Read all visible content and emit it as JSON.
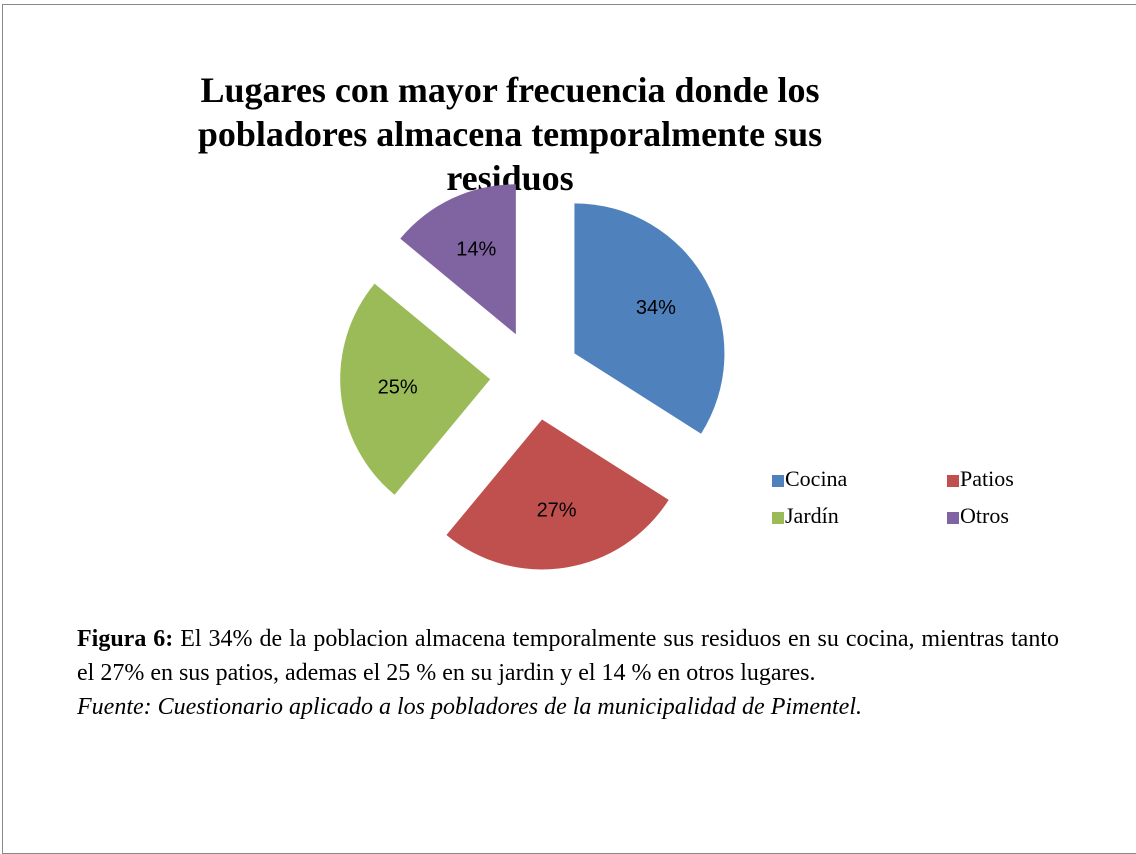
{
  "chart_data": {
    "type": "pie",
    "title": "Lugares con mayor frecuencia donde los pobladores almacena temporalmente sus residuos",
    "categories": [
      "Cocina",
      "Patios",
      "Jardín",
      "Otros"
    ],
    "values": [
      34,
      27,
      25,
      14
    ],
    "value_labels": [
      "34%",
      "27%",
      "25%",
      "14%"
    ],
    "colors": [
      "#4f81bd",
      "#c0504d",
      "#9bbb59",
      "#8064a2"
    ]
  },
  "caption": {
    "label": "Figura 6:",
    "text": "El 34% de la poblacion almacena temporalmente sus residuos en su cocina, mientras tanto el 27% en sus patios, ademas el 25 % en su jardin y el 14 % en otros lugares.",
    "source": "Fuente: Cuestionario aplicado a los pobladores de la municipalidad de Pimentel."
  }
}
